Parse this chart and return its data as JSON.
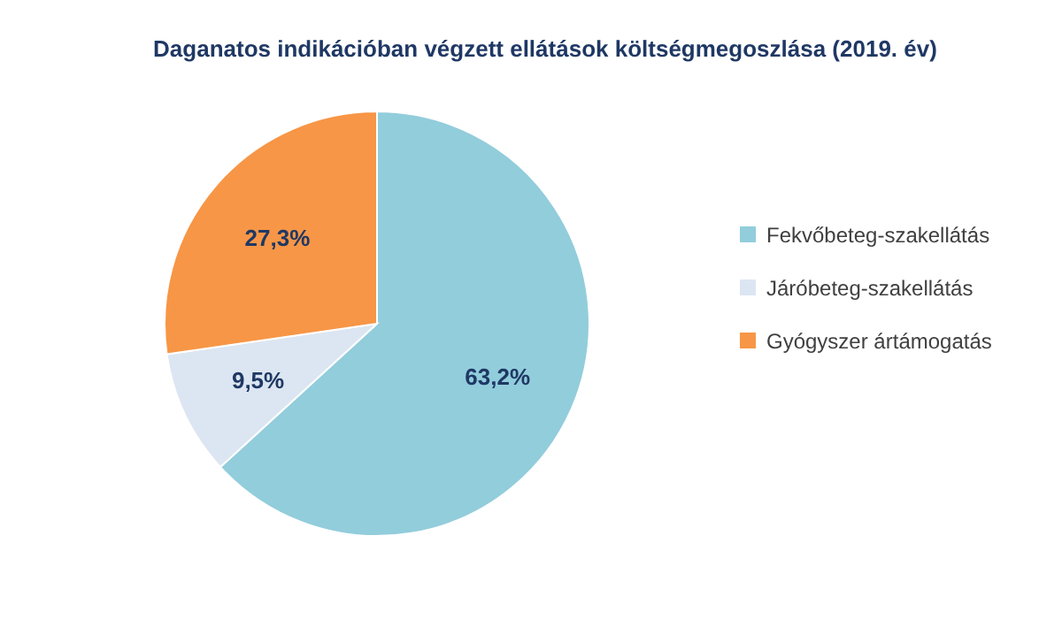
{
  "chart_data": {
    "type": "pie",
    "title": "Daganatos indikációban végzett ellátások költségmegoszlása (2019. év)",
    "categories": [
      "Fekvőbeteg-szakellátás",
      "Járóbeteg-szakellátás",
      "Gyógyszer ártámogatás"
    ],
    "values": [
      63.2,
      9.5,
      27.3
    ],
    "colors": [
      "#92cddc",
      "#dce6f2",
      "#f79646"
    ],
    "value_labels": [
      "63,2%",
      "9,5%",
      "27,3%"
    ],
    "legend": "right"
  }
}
